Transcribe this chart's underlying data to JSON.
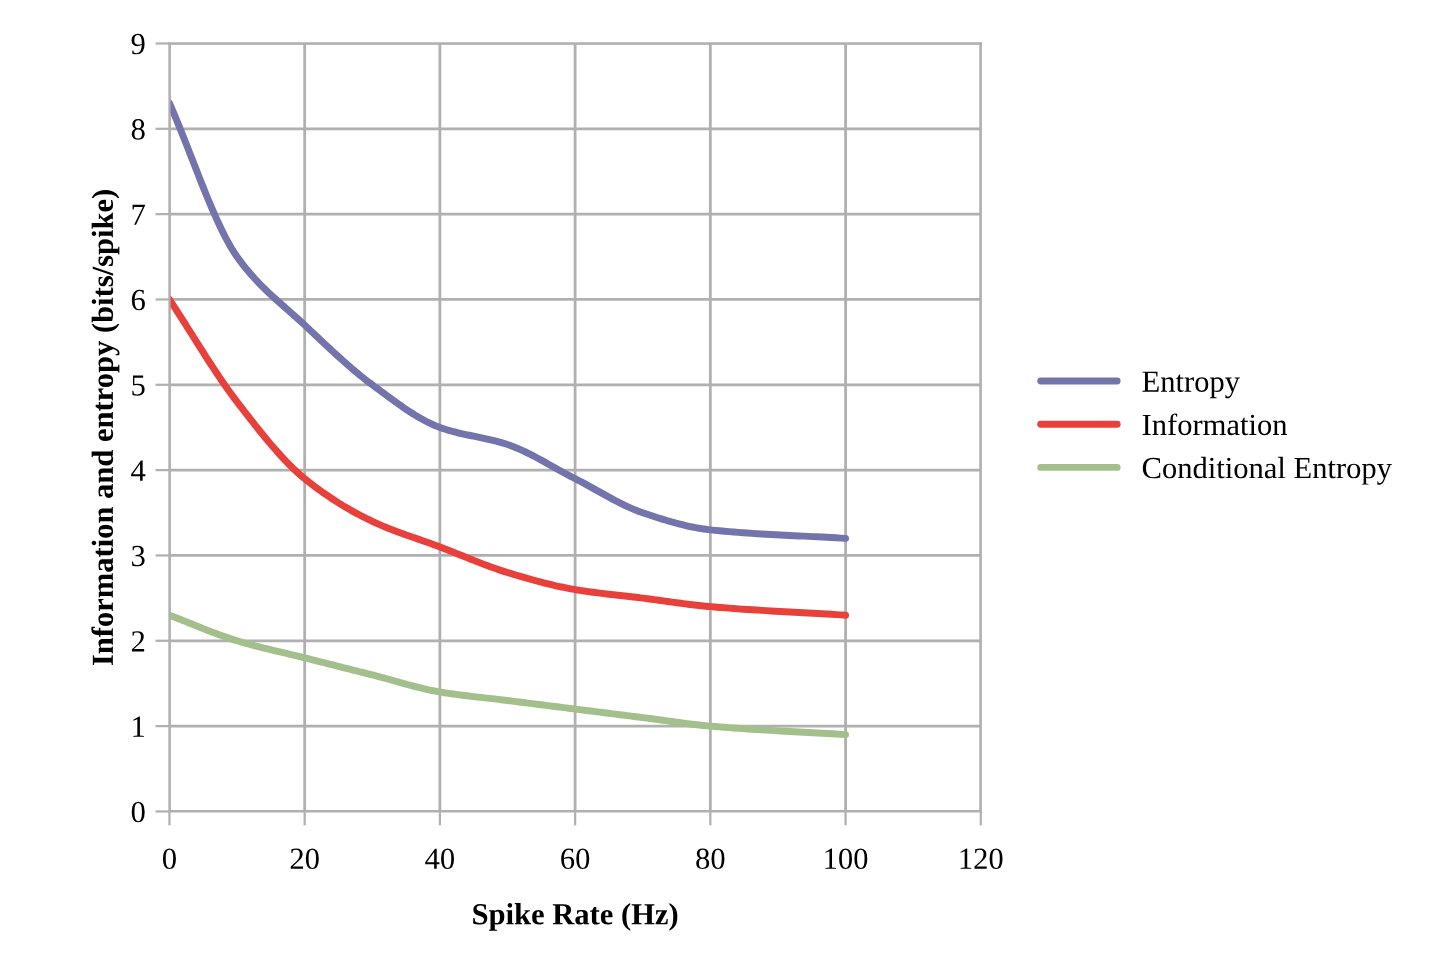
{
  "chart_data": {
    "type": "line",
    "xlabel": "Spike Rate (Hz)",
    "ylabel": "Information and entropy (bits/spike)",
    "x": [
      0,
      10,
      20,
      30,
      40,
      50,
      60,
      70,
      80,
      100
    ],
    "series": [
      {
        "name": "Entropy",
        "color": "#7474ad",
        "values": [
          8.3,
          6.5,
          5.7,
          5.0,
          4.5,
          4.3,
          3.9,
          3.5,
          3.3,
          3.2
        ]
      },
      {
        "name": "Information",
        "color": "#e8413c",
        "values": [
          6.0,
          4.8,
          3.9,
          3.4,
          3.1,
          2.8,
          2.6,
          2.5,
          2.4,
          2.3
        ]
      },
      {
        "name": "Conditional Entropy",
        "color": "#a3c08c",
        "values": [
          2.3,
          2.0,
          1.8,
          1.6,
          1.4,
          1.3,
          1.2,
          1.1,
          1.0,
          0.9
        ]
      }
    ],
    "xlim": [
      0,
      120
    ],
    "xticks": [
      0,
      20,
      40,
      60,
      80,
      100,
      120
    ],
    "ylim": [
      0,
      9
    ],
    "yticks": [
      0,
      1,
      2,
      3,
      4,
      5,
      6,
      7,
      8,
      9
    ],
    "grid": true,
    "legend": "right",
    "marker": "none",
    "line_style": "solid"
  }
}
